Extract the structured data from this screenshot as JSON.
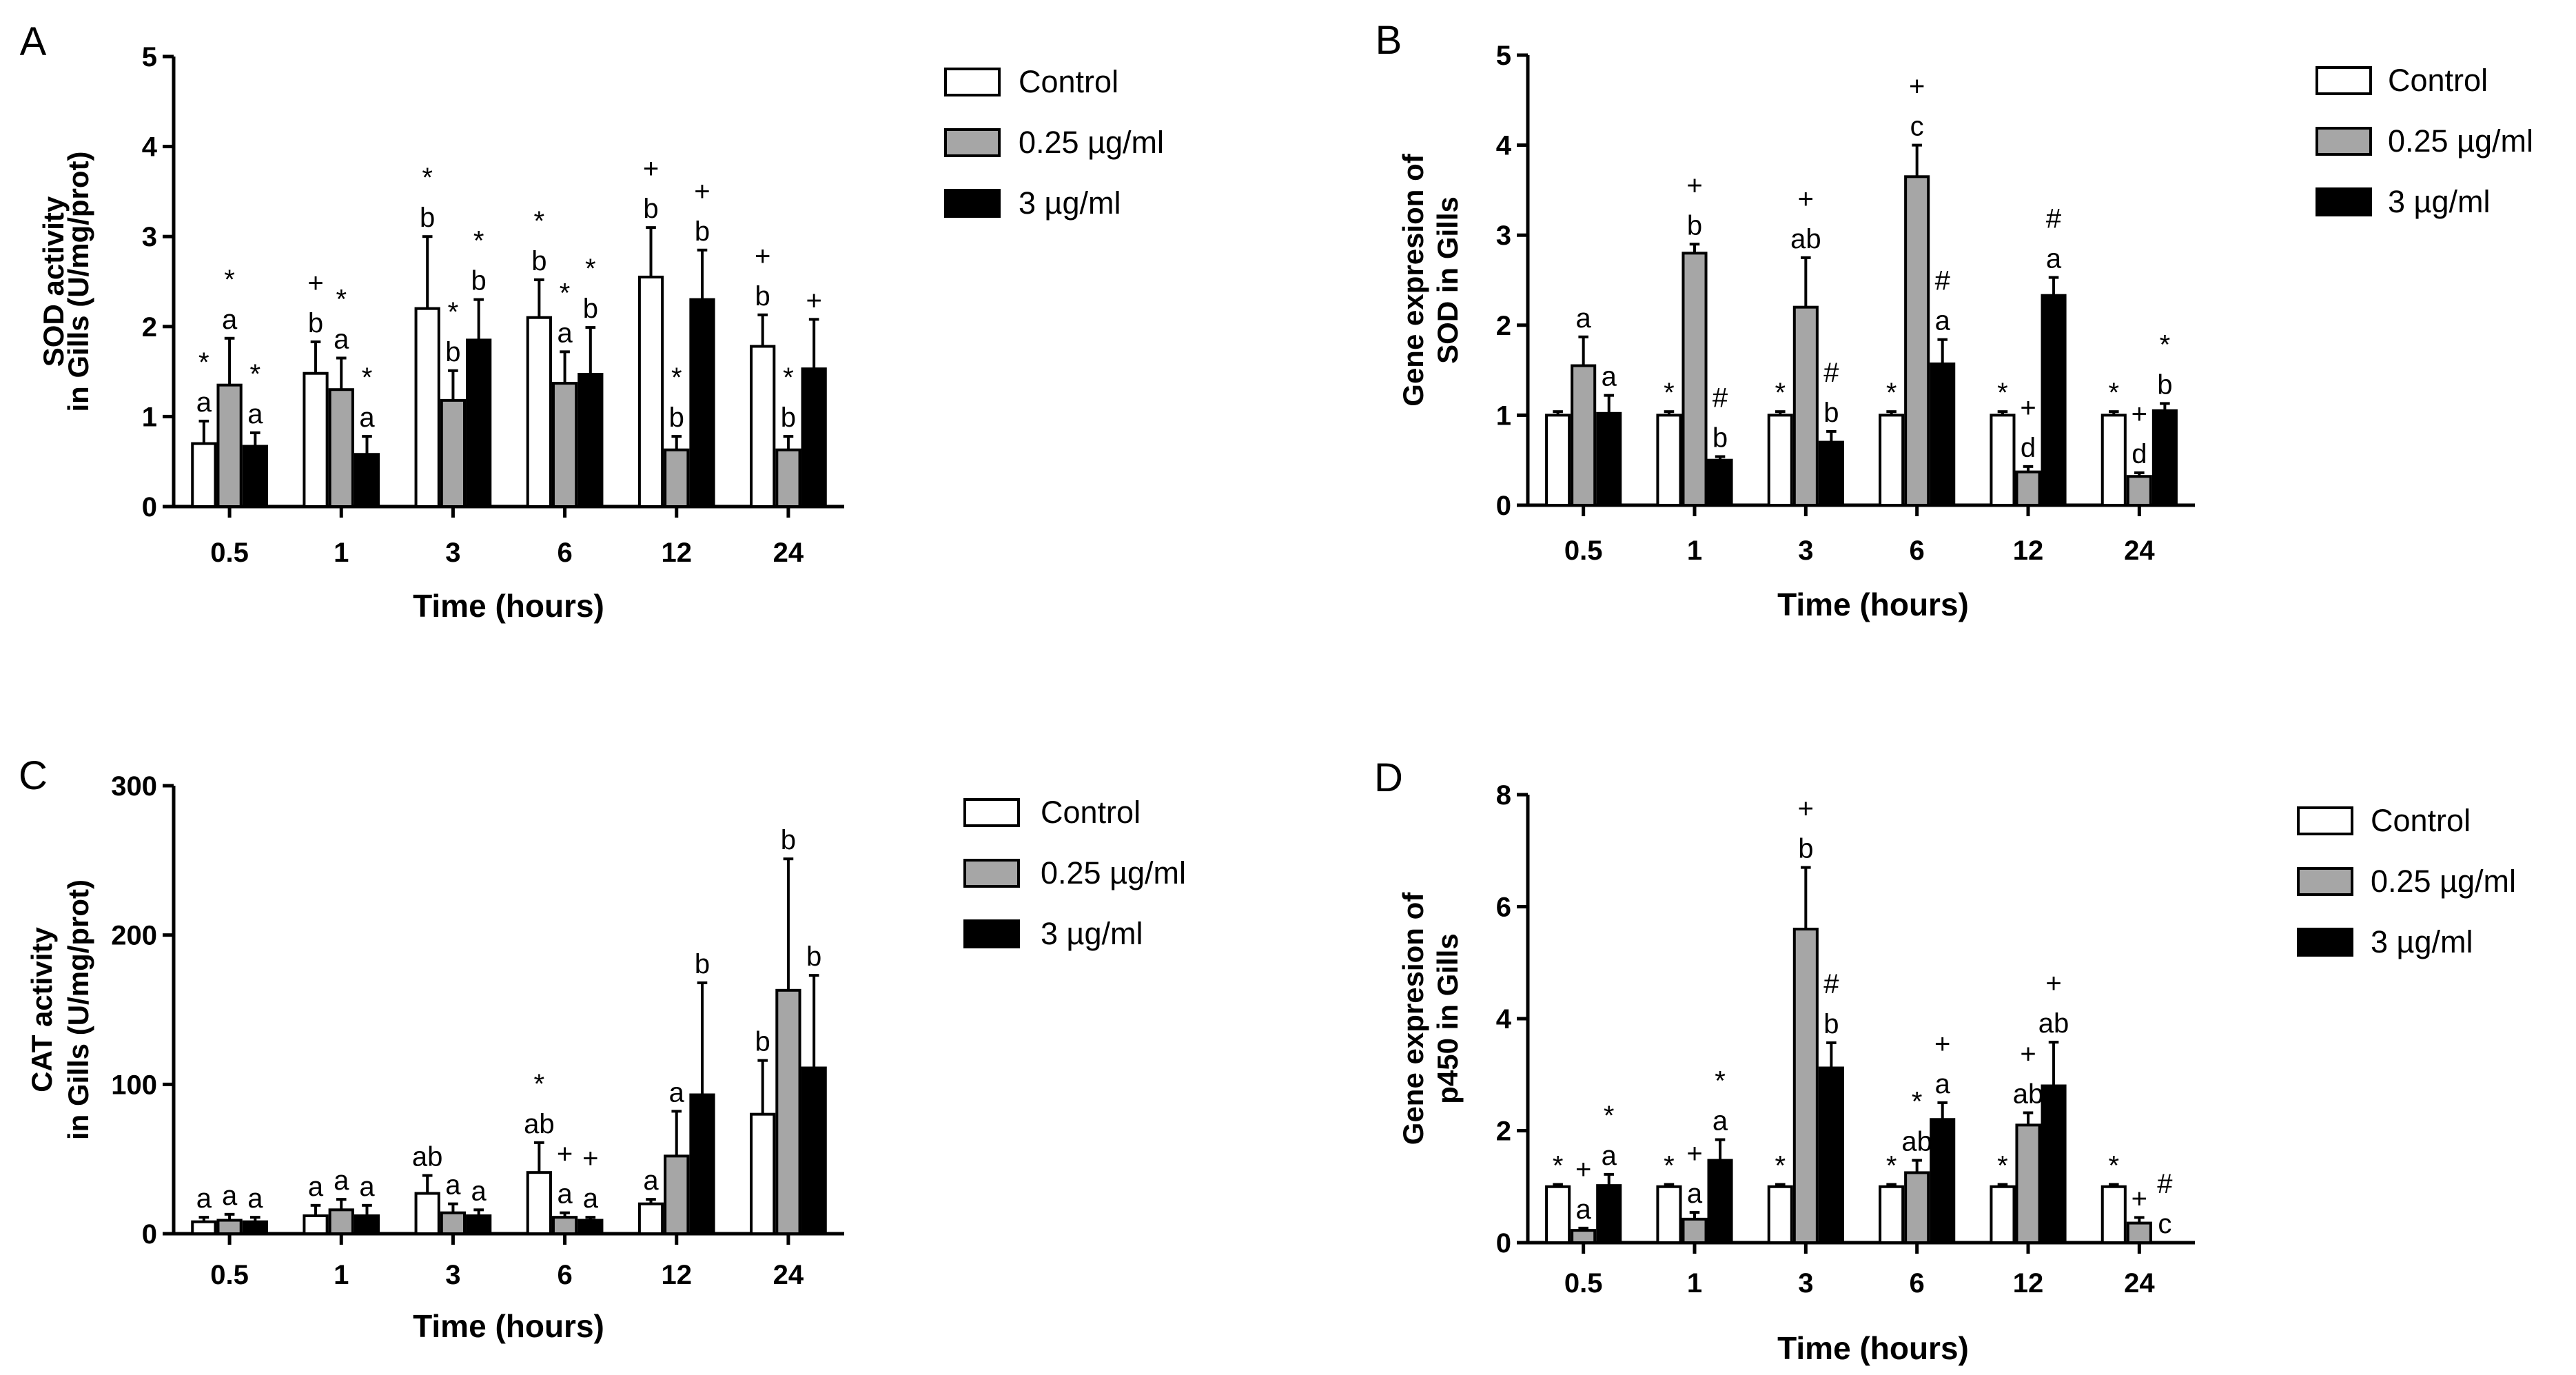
{
  "legend_labels": [
    "Control",
    "0.25 µg/ml",
    "3 µg/ml"
  ],
  "series_colors": [
    "#ffffff",
    "#a6a6a6",
    "#000000"
  ],
  "chart_data": [
    {
      "panel": "A",
      "type": "bar",
      "categories": [
        "0.5",
        "1",
        "3",
        "6",
        "12",
        "24"
      ],
      "xlabel": "Time (hours)",
      "ylabel_lines": [
        "SOD activity",
        "in Gills (U/mg/prot)"
      ],
      "ylim": [
        0,
        5
      ],
      "yticks": [
        0,
        1,
        2,
        3,
        4,
        5
      ],
      "legend_placement": "right",
      "series": [
        {
          "name": "Control",
          "values": [
            0.7,
            1.48,
            2.2,
            2.1,
            2.55,
            1.78
          ],
          "errors": [
            0.25,
            0.35,
            0.8,
            0.42,
            0.55,
            0.35
          ],
          "labels": [
            [
              "*",
              "a"
            ],
            [
              "+",
              "b"
            ],
            [
              "*",
              "b"
            ],
            [
              "*",
              "b"
            ],
            [
              "+",
              "b"
            ],
            [
              "+",
              "b"
            ]
          ]
        },
        {
          "name": "0.25 µg/ml",
          "values": [
            1.35,
            1.3,
            1.18,
            1.37,
            0.63,
            0.63
          ],
          "errors": [
            0.52,
            0.35,
            0.33,
            0.35,
            0.15,
            0.15
          ],
          "labels": [
            [
              "*",
              "a"
            ],
            [
              "*",
              "a"
            ],
            [
              "*",
              "b"
            ],
            [
              "*",
              "a"
            ],
            [
              "*",
              "b"
            ],
            [
              "*",
              "b"
            ]
          ]
        },
        {
          "name": "3 µg/ml",
          "values": [
            0.67,
            0.58,
            1.85,
            1.47,
            2.3,
            1.53
          ],
          "errors": [
            0.15,
            0.2,
            0.45,
            0.52,
            0.55,
            0.55
          ],
          "labels": [
            [
              "*",
              "a"
            ],
            [
              "*",
              "a"
            ],
            [
              "*",
              "b"
            ],
            [
              "*",
              "b"
            ],
            [
              "+",
              "b"
            ],
            [
              "+"
            ]
          ]
        }
      ]
    },
    {
      "panel": "B",
      "type": "bar",
      "categories": [
        "0.5",
        "1",
        "3",
        "6",
        "12",
        "24"
      ],
      "xlabel": "Time (hours)",
      "ylabel_lines": [
        "Gene expresion of",
        "SOD in Gills"
      ],
      "ylim": [
        0,
        5
      ],
      "yticks": [
        0,
        1,
        2,
        3,
        4,
        5
      ],
      "legend_placement": "right",
      "series": [
        {
          "name": "Control",
          "values": [
            1.0,
            1.0,
            1.0,
            1.0,
            1.0,
            1.0
          ],
          "errors": [
            0.04,
            0.04,
            0.04,
            0.04,
            0.04,
            0.04
          ],
          "labels": [
            [],
            [
              "*"
            ],
            [
              "*"
            ],
            [
              "*"
            ],
            [
              "*"
            ],
            [
              "*"
            ]
          ]
        },
        {
          "name": "0.25 µg/ml",
          "values": [
            1.55,
            2.8,
            2.2,
            3.65,
            0.37,
            0.32
          ],
          "errors": [
            0.32,
            0.1,
            0.55,
            0.35,
            0.06,
            0.04
          ],
          "labels": [
            [
              "a"
            ],
            [
              "+",
              "b"
            ],
            [
              "+",
              "ab"
            ],
            [
              "+",
              "c"
            ],
            [
              "+",
              "d"
            ],
            [
              "+",
              "d"
            ]
          ]
        },
        {
          "name": "3 µg/ml",
          "values": [
            1.02,
            0.5,
            0.7,
            1.57,
            2.33,
            1.05
          ],
          "errors": [
            0.2,
            0.04,
            0.12,
            0.27,
            0.2,
            0.08
          ],
          "labels": [
            [
              "a"
            ],
            [
              "#",
              "b"
            ],
            [
              "#",
              "b"
            ],
            [
              "#",
              "a"
            ],
            [
              "#",
              "a"
            ],
            [
              "*",
              "b"
            ]
          ]
        }
      ]
    },
    {
      "panel": "C",
      "type": "bar",
      "categories": [
        "0.5",
        "1",
        "3",
        "6",
        "12",
        "24"
      ],
      "xlabel": "Time (hours)",
      "ylabel_lines": [
        "CAT activity",
        "in Gills (U/mg/prot)"
      ],
      "ylim": [
        0,
        300
      ],
      "yticks": [
        0,
        100,
        200,
        300
      ],
      "legend_placement": "right",
      "series": [
        {
          "name": "Control",
          "values": [
            8,
            12,
            27,
            41,
            20,
            80
          ],
          "errors": [
            3,
            7,
            12,
            20,
            3,
            36
          ],
          "labels": [
            [
              "a"
            ],
            [
              "a"
            ],
            [
              "ab"
            ],
            [
              "*",
              "ab"
            ],
            [
              "a"
            ],
            [
              "b"
            ]
          ]
        },
        {
          "name": "0.25 µg/ml",
          "values": [
            9,
            16,
            14,
            11,
            52,
            163
          ],
          "errors": [
            4,
            7,
            6,
            3,
            30,
            88
          ],
          "labels": [
            [
              "a"
            ],
            [
              "a"
            ],
            [
              "a"
            ],
            [
              "+",
              "a"
            ],
            [
              "a"
            ],
            [
              "b"
            ]
          ]
        },
        {
          "name": "3 µg/ml",
          "values": [
            8,
            12,
            12,
            9,
            93,
            111
          ],
          "errors": [
            3,
            7,
            4,
            2,
            75,
            62
          ],
          "labels": [
            [
              "a"
            ],
            [
              "a"
            ],
            [
              "a"
            ],
            [
              "+",
              "a"
            ],
            [
              "b"
            ],
            [
              "b"
            ]
          ]
        }
      ]
    },
    {
      "panel": "D",
      "type": "bar",
      "categories": [
        "0.5",
        "1",
        "3",
        "6",
        "12",
        "24"
      ],
      "xlabel": "Time (hours)",
      "ylabel_lines": [
        "Gene expresion of",
        "p450 in Gills"
      ],
      "ylim": [
        0,
        8
      ],
      "yticks": [
        0,
        2,
        4,
        6,
        8
      ],
      "legend_placement": "right",
      "series": [
        {
          "name": "Control",
          "values": [
            1.0,
            1.0,
            1.0,
            1.0,
            1.0,
            1.0
          ],
          "errors": [
            0.04,
            0.04,
            0.04,
            0.04,
            0.04,
            0.04
          ],
          "labels": [
            [
              "*"
            ],
            [
              "*"
            ],
            [
              "*"
            ],
            [
              "*"
            ],
            [
              "*"
            ],
            [
              "*"
            ]
          ]
        },
        {
          "name": "0.25 µg/ml",
          "values": [
            0.22,
            0.42,
            5.6,
            1.25,
            2.1,
            0.35
          ],
          "errors": [
            0.04,
            0.12,
            1.1,
            0.22,
            0.22,
            0.1
          ],
          "labels": [
            [
              "+",
              "a"
            ],
            [
              "+",
              "a"
            ],
            [
              "+",
              "b"
            ],
            [
              "*",
              "ab"
            ],
            [
              "+",
              "ab"
            ],
            [
              "+"
            ]
          ]
        },
        {
          "name": "3 µg/ml",
          "values": [
            1.02,
            1.47,
            3.12,
            2.2,
            2.8,
            0.0
          ],
          "errors": [
            0.2,
            0.37,
            0.45,
            0.3,
            0.78,
            0.0
          ],
          "labels": [
            [
              "*",
              "a"
            ],
            [
              "*",
              "a"
            ],
            [
              "#",
              "b"
            ],
            [
              "+",
              "a"
            ],
            [
              "+",
              "ab"
            ],
            [
              "#",
              "c"
            ]
          ]
        }
      ]
    }
  ]
}
